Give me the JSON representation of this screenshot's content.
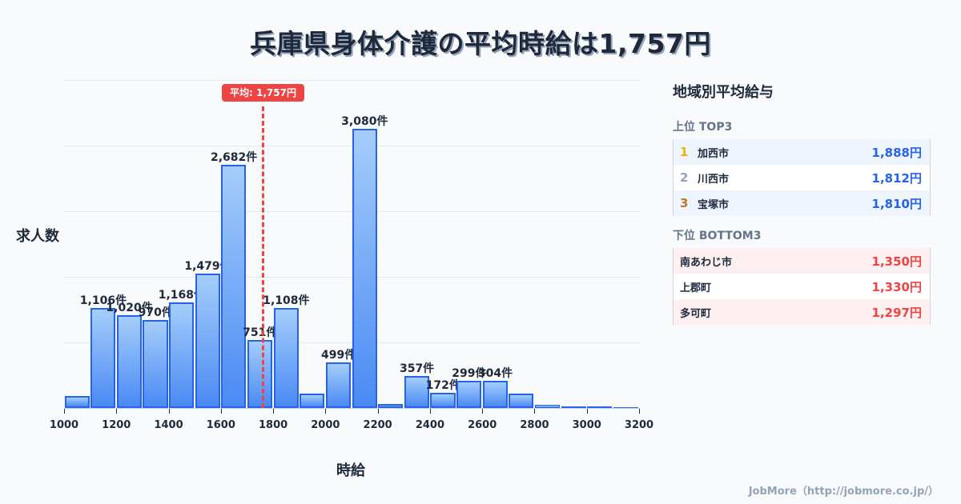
{
  "title": "兵庫県身体介護の平均時給は1,757円",
  "chart": {
    "ylabel": "求人数",
    "xlabel": "時給",
    "avg_badge": "平均: 1,757円",
    "x_ticks": [
      "1000",
      "1200",
      "1400",
      "1600",
      "1800",
      "2000",
      "2200",
      "2400",
      "2600",
      "2800",
      "3000",
      "3200"
    ],
    "bar_labels": [
      "",
      "1,106件",
      "1,020件",
      "970件",
      "1,168件",
      "1,479件",
      "2,682件",
      "751件",
      "1,108件",
      "",
      "499件",
      "3,080件",
      "",
      "357件",
      "172件",
      "299件",
      "304件",
      "",
      "",
      "",
      "",
      ""
    ]
  },
  "chart_data": {
    "type": "bar",
    "title": "兵庫県身体介護の平均時給は1,757円",
    "xlabel": "時給",
    "ylabel": "求人数",
    "categories": [
      "1000-1100",
      "1100-1200",
      "1200-1300",
      "1300-1400",
      "1400-1500",
      "1500-1600",
      "1600-1700",
      "1700-1800",
      "1800-1900",
      "1900-2000",
      "2000-2100",
      "2100-2200",
      "2200-2300",
      "2300-2400",
      "2400-2500",
      "2500-2600",
      "2600-2700",
      "2700-2800",
      "2800-2900",
      "2900-3000",
      "3000-3100",
      "3100-3200"
    ],
    "values": [
      132,
      1106,
      1020,
      970,
      1168,
      1479,
      2682,
      751,
      1108,
      160,
      499,
      3080,
      45,
      357,
      172,
      299,
      304,
      160,
      35,
      15,
      15,
      10
    ],
    "xlim": [
      1000,
      3200
    ],
    "ylim": [
      0,
      3620
    ],
    "grid": true,
    "annotations": [
      {
        "type": "vline",
        "x": 1757,
        "label": "平均: 1,757円",
        "color": "#ef4444"
      }
    ],
    "bar_color": "#3b82f6",
    "bar_edge_color": "#2563eb"
  },
  "panel": {
    "title": "地域別平均給与",
    "top_title": "上位 TOP3",
    "top": [
      {
        "rank": "1",
        "name": "加西市",
        "value": "1,888円",
        "rank_color": "#eab308"
      },
      {
        "rank": "2",
        "name": "川西市",
        "value": "1,812円",
        "rank_color": "#94a3b8"
      },
      {
        "rank": "3",
        "name": "宝塚市",
        "value": "1,810円",
        "rank_color": "#c2732f"
      }
    ],
    "bottom_title": "下位 BOTTOM3",
    "bottom": [
      {
        "name": "南あわじ市",
        "value": "1,350円"
      },
      {
        "name": "上郡町",
        "value": "1,330円"
      },
      {
        "name": "多可町",
        "value": "1,297円"
      }
    ]
  },
  "footer": "JobMore（http://jobmore.co.jp/）",
  "colors": {
    "accent_blue": "#2563eb",
    "accent_red": "#ef4444",
    "text": "#1e293b",
    "muted": "#64748b"
  }
}
